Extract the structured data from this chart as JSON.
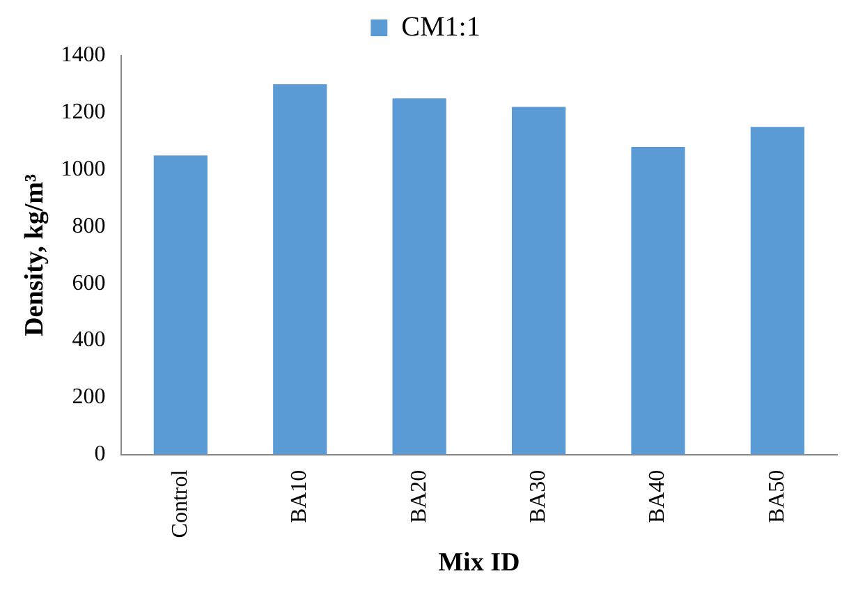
{
  "chart_data": {
    "type": "bar",
    "xlabel": "Mix ID",
    "ylabel": "Density, kg/m³",
    "categories": [
      "Control",
      "BA10",
      "BA20",
      "BA30",
      "BA40",
      "BA50"
    ],
    "series": [
      {
        "name": "CM1:1",
        "color": "#5b9bd5",
        "values": [
          1050,
          1300,
          1250,
          1220,
          1080,
          1150
        ]
      }
    ],
    "ylim": [
      0,
      1400
    ],
    "yticks": [
      0,
      200,
      400,
      600,
      800,
      1000,
      1200,
      1400
    ],
    "grid": false,
    "legend": "top"
  }
}
